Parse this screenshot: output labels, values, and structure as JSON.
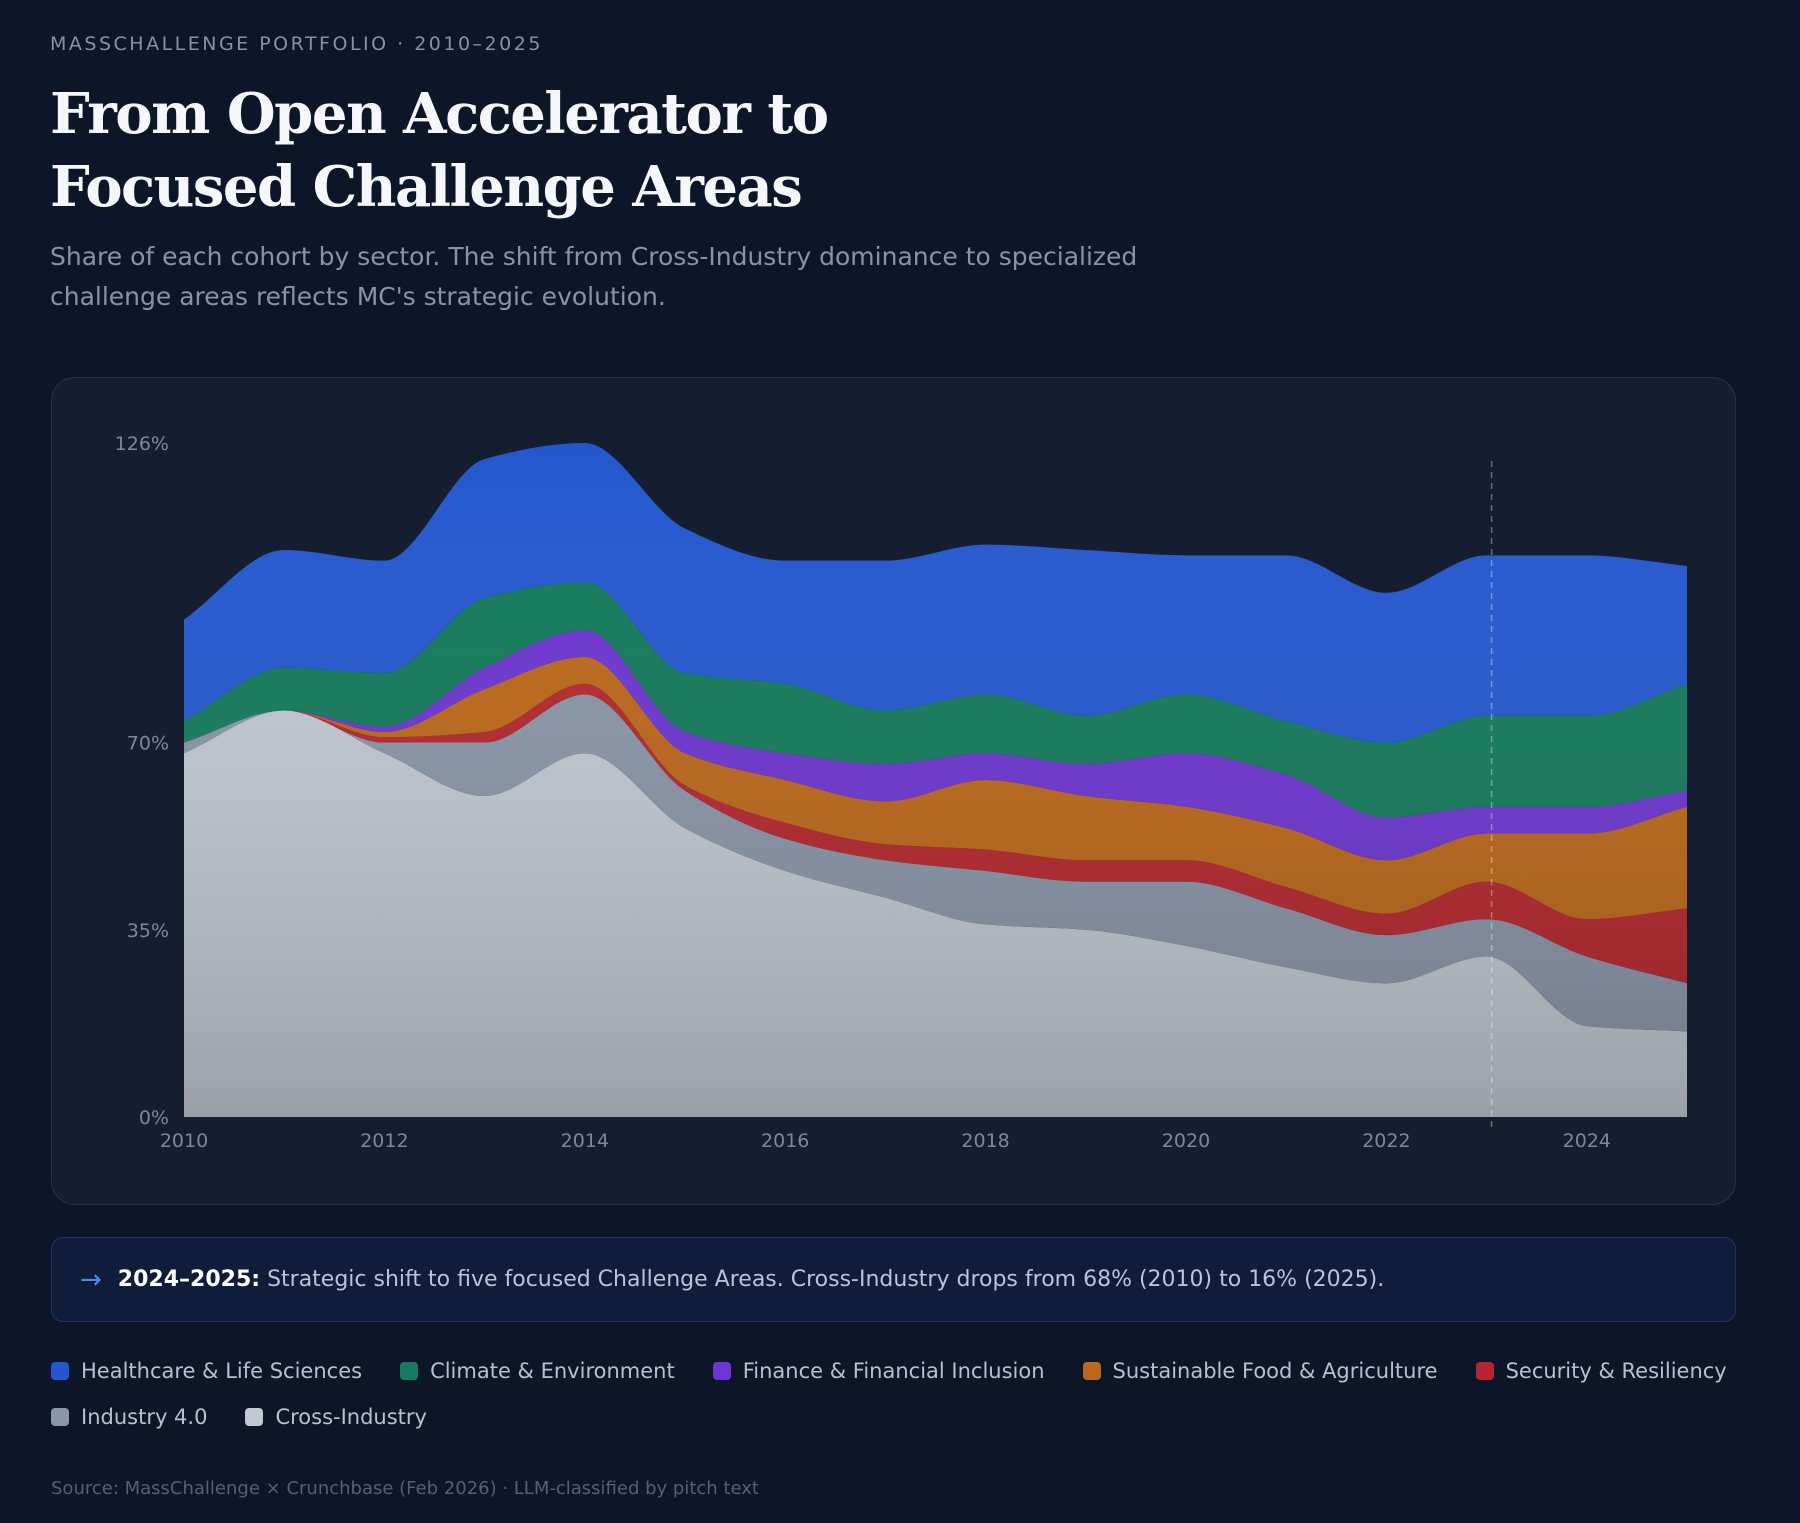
{
  "header": {
    "eyebrow": "MASSCHALLENGE PORTFOLIO · 2010–2025",
    "title": "From Open Accelerator to Focused Challenge Areas",
    "subtitle": "Share of each cohort by sector. The shift from Cross-Industry dominance to specialized challenge areas reflects MC's strategic evolution."
  },
  "callout": {
    "arrow": "→",
    "lead": "2024–2025:",
    "text": "Strategic shift to five focused Challenge Areas. Cross-Industry drops from 68% (2010) to 16% (2025)."
  },
  "source": "Source: MassChallenge × Crunchbase (Feb 2026) · LLM-classified by pitch text",
  "chart_data": {
    "type": "area",
    "stacked": true,
    "smooth": true,
    "x": [
      2010,
      2011,
      2012,
      2013,
      2014,
      2015,
      2016,
      2017,
      2018,
      2019,
      2020,
      2021,
      2022,
      2023,
      2024,
      2025
    ],
    "y_ticks": [
      0,
      35,
      70,
      126
    ],
    "y_tick_labels": [
      "0%",
      "35%",
      "70%",
      "126%"
    ],
    "ylim": [
      0,
      126
    ],
    "x_ticks": [
      2010,
      2012,
      2014,
      2016,
      2018,
      2020,
      2022,
      2024
    ],
    "marker_year": 2023.05,
    "grid": false,
    "series": [
      {
        "name": "Cross-Industry",
        "color": "#c1c8d2",
        "values": [
          68,
          76,
          68,
          60,
          68,
          54,
          46,
          41,
          36,
          35,
          32,
          28,
          25,
          30,
          17,
          16
        ]
      },
      {
        "name": "Industry 4.0",
        "color": "#8995a8",
        "values": [
          2,
          0,
          2,
          10,
          11,
          7,
          6,
          7,
          10,
          9,
          12,
          11,
          9,
          7,
          13,
          9
        ]
      },
      {
        "name": "Security & Resiliency",
        "color": "#b5262e",
        "values": [
          0,
          0,
          1,
          2,
          2,
          1,
          3,
          3,
          4,
          4,
          4,
          4,
          4,
          7,
          7,
          14
        ]
      },
      {
        "name": "Sustainable Food & Agriculture",
        "color": "#bc6719",
        "values": [
          0,
          0,
          1,
          8,
          5,
          6,
          8,
          8,
          13,
          12,
          10,
          11,
          10,
          9,
          16,
          19
        ]
      },
      {
        "name": "Finance & Financial Inclusion",
        "color": "#6d35d1",
        "values": [
          0,
          0,
          1,
          4,
          5,
          4,
          5,
          7,
          5,
          6,
          10,
          10,
          8,
          5,
          5,
          3
        ]
      },
      {
        "name": "Climate & Environment",
        "color": "#137a5b",
        "values": [
          4,
          8,
          10,
          13,
          9,
          11,
          13,
          10,
          11,
          9,
          11,
          10,
          14,
          17,
          17,
          20
        ]
      },
      {
        "name": "Healthcare & Life Sciences",
        "color": "#2457cf",
        "values": [
          19,
          22,
          21,
          26,
          26,
          27,
          23,
          28,
          28,
          31,
          26,
          31,
          28,
          30,
          30,
          22
        ]
      }
    ]
  },
  "legend": [
    {
      "label": "Healthcare & Life Sciences",
      "color": "#2457cf"
    },
    {
      "label": "Climate & Environment",
      "color": "#137a5b"
    },
    {
      "label": "Finance & Financial Inclusion",
      "color": "#6d35d1"
    },
    {
      "label": "Sustainable Food & Agriculture",
      "color": "#bc6719"
    },
    {
      "label": "Security & Resiliency",
      "color": "#b5262e"
    },
    {
      "label": "Industry 4.0",
      "color": "#8995a8"
    },
    {
      "label": "Cross-Industry",
      "color": "#c1c8d2"
    }
  ]
}
